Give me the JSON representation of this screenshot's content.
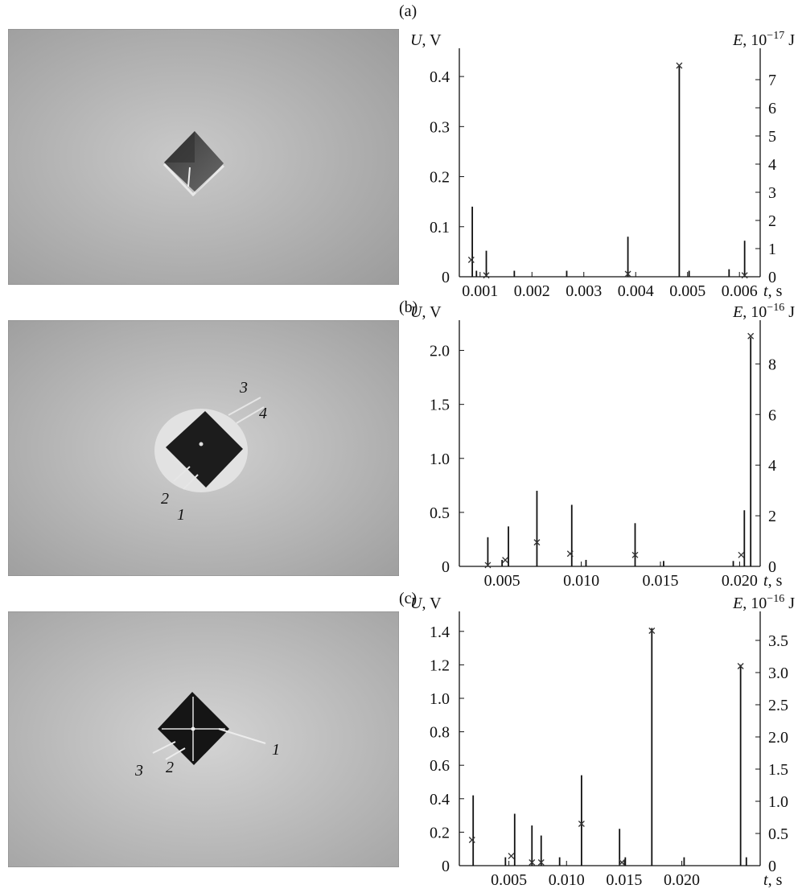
{
  "photos": [
    {
      "labels": []
    },
    {
      "labels": [
        "3",
        "4",
        "2",
        "1"
      ]
    },
    {
      "labels": [
        "1",
        "3",
        "2"
      ]
    }
  ],
  "chart_data": [
    {
      "panel_label": "(a)",
      "type": "bar",
      "y_label_var": "U",
      "y_label_unit": ", V",
      "y2_label_var": "E",
      "y2_label_unit": ", 10",
      "y2_label_exp": "−17",
      "y2_label_tail": " J",
      "x_label_var": "t",
      "x_label_unit": ", s",
      "xlim": [
        0.0006,
        0.0064
      ],
      "ylim": [
        0,
        0.45
      ],
      "y2lim": [
        0,
        8
      ],
      "x_ticks": [
        0.001,
        0.002,
        0.003,
        0.004,
        0.005,
        0.006
      ],
      "x_tick_labels": [
        "0.001",
        "0.002",
        "0.003",
        "0.004",
        "0.005",
        "0.006"
      ],
      "y_ticks": [
        0,
        0.1,
        0.2,
        0.3,
        0.4
      ],
      "y_tick_labels": [
        "0",
        "0.1",
        "0.2",
        "0.3",
        "0.4"
      ],
      "y2_ticks": [
        0,
        1,
        2,
        3,
        4,
        5,
        6,
        7
      ],
      "y2_tick_labels": [
        "0",
        "1",
        "2",
        "3",
        "4",
        "5",
        "6",
        "7"
      ],
      "bars": [
        {
          "t": 0.00085,
          "U": 0.14
        },
        {
          "t": 0.00093,
          "U": 0.012
        },
        {
          "t": 0.00112,
          "U": 0.052
        },
        {
          "t": 0.00166,
          "U": 0.012
        },
        {
          "t": 0.00267,
          "U": 0.012
        },
        {
          "t": 0.00385,
          "U": 0.08
        },
        {
          "t": 0.00484,
          "U": 0.42
        },
        {
          "t": 0.00503,
          "U": 0.012
        },
        {
          "t": 0.0058,
          "U": 0.015
        },
        {
          "t": 0.0061,
          "U": 0.072
        }
      ],
      "energy_markers": [
        {
          "t": 0.00083,
          "E": 0.6
        },
        {
          "t": 0.00112,
          "E": 0.05
        },
        {
          "t": 0.00385,
          "E": 0.1
        },
        {
          "t": 0.00484,
          "E": 7.5
        },
        {
          "t": 0.0061,
          "E": 0.05
        }
      ]
    },
    {
      "panel_label": "(b)",
      "type": "bar",
      "y_label_var": "U",
      "y_label_unit": ", V",
      "y2_label_var": "E",
      "y2_label_unit": ", 10",
      "y2_label_exp": "−16",
      "y2_label_tail": " J",
      "x_label_var": "t",
      "x_label_unit": ", s",
      "xlim": [
        0.0023,
        0.0213
      ],
      "ylim": [
        0,
        2.25
      ],
      "y2lim": [
        0,
        9.6
      ],
      "x_ticks": [
        0.005,
        0.01,
        0.015,
        0.02
      ],
      "x_tick_labels": [
        "0.005",
        "0.010",
        "0.015",
        "0.020"
      ],
      "y_ticks": [
        0,
        0.5,
        1.0,
        1.5,
        2.0
      ],
      "y_tick_labels": [
        "0",
        "0.5",
        "1.0",
        "1.5",
        "2.0"
      ],
      "y2_ticks": [
        0,
        2,
        4,
        6,
        8
      ],
      "y2_tick_labels": [
        "0",
        "2",
        "4",
        "6",
        "8"
      ],
      "bars": [
        {
          "t": 0.0041,
          "U": 0.27
        },
        {
          "t": 0.005,
          "U": 0.06
        },
        {
          "t": 0.0054,
          "U": 0.37
        },
        {
          "t": 0.0072,
          "U": 0.7
        },
        {
          "t": 0.0094,
          "U": 0.57
        },
        {
          "t": 0.0103,
          "U": 0.06
        },
        {
          "t": 0.0134,
          "U": 0.4
        },
        {
          "t": 0.0152,
          "U": 0.05
        },
        {
          "t": 0.0196,
          "U": 0.05
        },
        {
          "t": 0.0203,
          "U": 0.52
        },
        {
          "t": 0.0207,
          "U": 2.12
        }
      ],
      "energy_markers": [
        {
          "t": 0.0041,
          "E": 0.05
        },
        {
          "t": 0.0052,
          "E": 0.25
        },
        {
          "t": 0.0072,
          "E": 0.95
        },
        {
          "t": 0.0093,
          "E": 0.5
        },
        {
          "t": 0.0134,
          "E": 0.45
        },
        {
          "t": 0.0201,
          "E": 0.45
        },
        {
          "t": 0.0207,
          "E": 9.1
        }
      ]
    },
    {
      "panel_label": "(c)",
      "type": "bar",
      "y_label_var": "U",
      "y_label_unit": ", V",
      "y2_label_var": "E",
      "y2_label_unit": ", 10",
      "y2_label_exp": "−16",
      "y2_label_tail": " J",
      "x_label_var": "t",
      "x_label_unit": ", s",
      "xlim": [
        0.0007,
        0.0268
      ],
      "ylim": [
        0,
        1.5
      ],
      "y2lim": [
        0,
        3.9
      ],
      "x_ticks": [
        0.005,
        0.01,
        0.015,
        0.02
      ],
      "x_tick_labels": [
        "0.005",
        "0.010",
        "0.015",
        "0.020"
      ],
      "y_ticks": [
        0,
        0.2,
        0.4,
        0.6,
        0.8,
        1.0,
        1.2,
        1.4
      ],
      "y_tick_labels": [
        "0",
        "0.2",
        "0.4",
        "0.6",
        "0.8",
        "1.0",
        "1.2",
        "1.4"
      ],
      "y2_ticks": [
        0,
        0.5,
        1.0,
        1.5,
        2.0,
        2.5,
        3.0,
        3.5
      ],
      "y2_tick_labels": [
        "0",
        "0.5",
        "1.0",
        "1.5",
        "2.0",
        "2.5",
        "3.0",
        "3.5"
      ],
      "bars": [
        {
          "t": 0.0019,
          "U": 0.42
        },
        {
          "t": 0.0047,
          "U": 0.05
        },
        {
          "t": 0.0055,
          "U": 0.31
        },
        {
          "t": 0.007,
          "U": 0.24
        },
        {
          "t": 0.0078,
          "U": 0.18
        },
        {
          "t": 0.0094,
          "U": 0.05
        },
        {
          "t": 0.0113,
          "U": 0.54
        },
        {
          "t": 0.0146,
          "U": 0.22
        },
        {
          "t": 0.0151,
          "U": 0.05
        },
        {
          "t": 0.0174,
          "U": 1.42
        },
        {
          "t": 0.0202,
          "U": 0.05
        },
        {
          "t": 0.0251,
          "U": 1.2
        },
        {
          "t": 0.0256,
          "U": 0.05
        }
      ],
      "energy_markers": [
        {
          "t": 0.0018,
          "E": 0.4
        },
        {
          "t": 0.0052,
          "E": 0.15
        },
        {
          "t": 0.007,
          "E": 0.05
        },
        {
          "t": 0.0078,
          "E": 0.05
        },
        {
          "t": 0.0113,
          "E": 0.65
        },
        {
          "t": 0.0148,
          "E": 0.05
        },
        {
          "t": 0.0174,
          "E": 3.65
        },
        {
          "t": 0.0251,
          "E": 3.1
        }
      ]
    }
  ]
}
